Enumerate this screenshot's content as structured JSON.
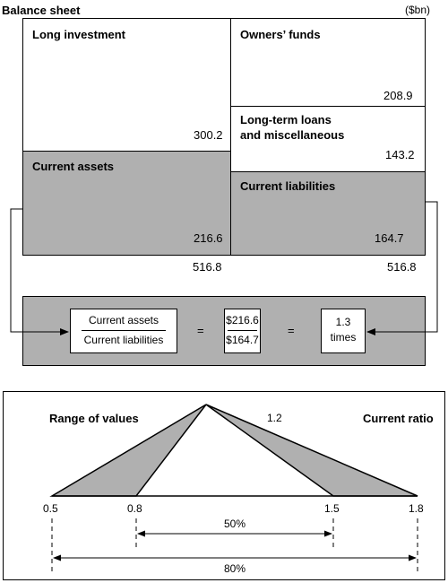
{
  "balance_sheet": {
    "title": "Balance sheet",
    "unit": "($bn)",
    "long_investment": {
      "label": "Long investment",
      "value": "300.2"
    },
    "current_assets": {
      "label": "Current assets",
      "value": "216.6"
    },
    "owners_funds": {
      "label": "Owners’ funds",
      "value": "208.9"
    },
    "long_term_loans": {
      "label_line1": "Long-term loans",
      "label_line2": "and miscellaneous",
      "value": "143.2"
    },
    "current_liabilities": {
      "label": "Current liabilities",
      "value": "164.7"
    },
    "total_assets": "516.8",
    "total_liabilities": "516.8"
  },
  "formula": {
    "numerator_label": "Current assets",
    "denominator_label": "Current liabilities",
    "equals_1": "=",
    "numerator_value": "$216.6",
    "denominator_value": "$164.7",
    "equals_2": "=",
    "result_line1": "1.3",
    "result_line2": "times"
  },
  "range_panel": {
    "range_label": "Range of values",
    "peak_value": "1.2",
    "ratio_label": "Current ratio",
    "ticks": [
      "0.5",
      "0.8",
      "1.5",
      "1.8"
    ],
    "inner_pct": "50%",
    "outer_pct": "80%"
  },
  "colors": {
    "shade": "#b0b0b0",
    "line": "#000000"
  }
}
